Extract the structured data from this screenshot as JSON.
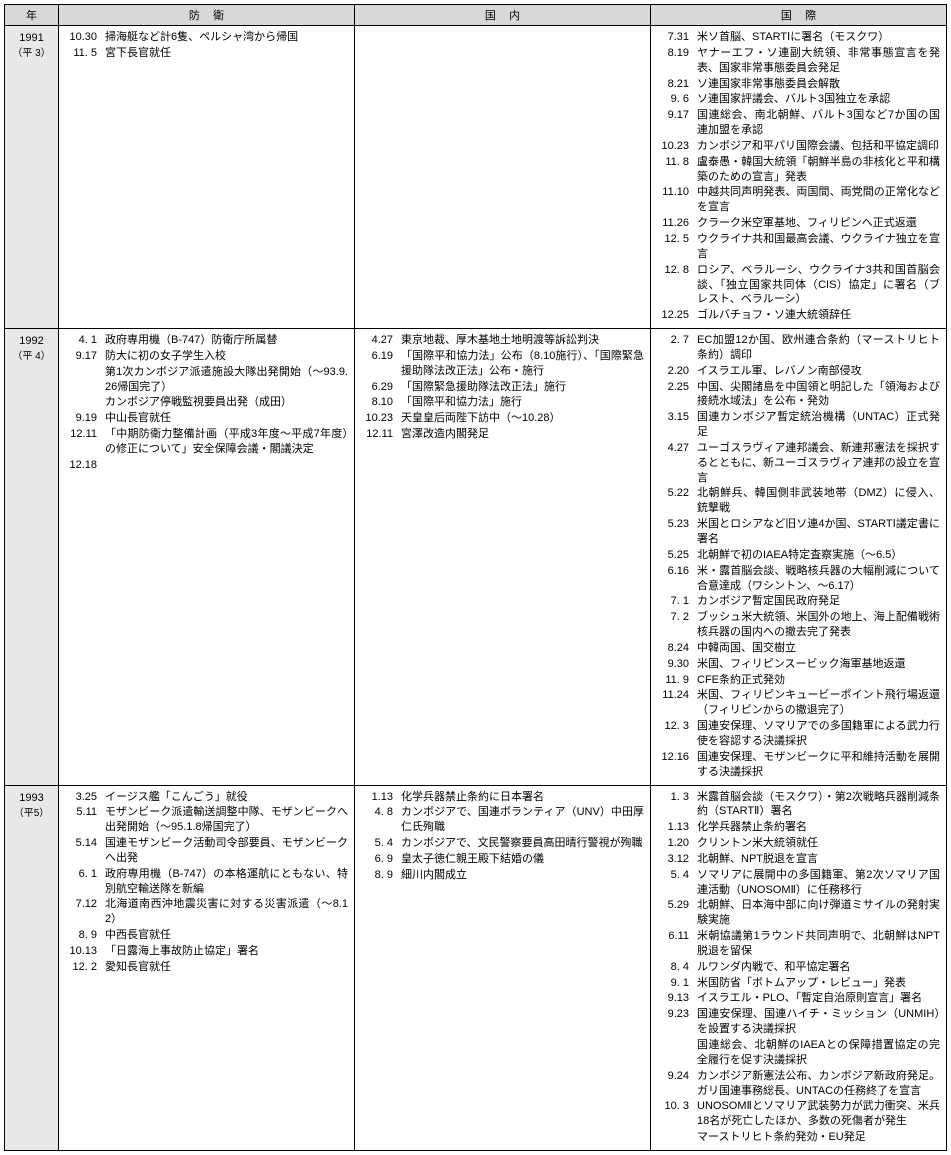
{
  "headers": {
    "year": "年",
    "defense": "防衛",
    "domestic": "国内",
    "international": "国際"
  },
  "col_widths": {
    "year": 54,
    "defense": 280,
    "domestic": 220,
    "international": 340
  },
  "colors": {
    "header_bg": "#d8d8d8",
    "year_bg": "#e8e8e8",
    "border": "#000000",
    "text": "#000000",
    "page_bg": "#ffffff"
  },
  "font_size_pt": 8,
  "rows": [
    {
      "year_main": "1991",
      "year_sub": "（平 3）",
      "defense": [
        {
          "date": "10.30",
          "text": "掃海艇など計6隻、ペルシャ湾から帰国"
        },
        {
          "date": "11. 5",
          "text": "宮下長官就任"
        }
      ],
      "domestic": [],
      "international": [
        {
          "date": "7.31",
          "text": "米ソ首脳、STARTⅠに署名（モスクワ）"
        },
        {
          "date": "8.19",
          "text": "ヤナーエフ・ソ連副大統領、非常事態宣言を発表、国家非常事態委員会発足"
        },
        {
          "date": "8.21",
          "text": "ソ連国家非常事態委員会解散"
        },
        {
          "date": "9. 6",
          "text": "ソ連国家評議会、バルト3国独立を承認"
        },
        {
          "date": "9.17",
          "text": "国連総会、南北朝鮮、バルト3国など7か国の国連加盟を承認"
        },
        {
          "date": "10.23",
          "text": "カンボジア和平パリ国際会議、包括和平協定調印"
        },
        {
          "date": "11. 8",
          "text": "盧泰愚・韓国大統領「朝鮮半島の非核化と平和構築のための宣言」発表"
        },
        {
          "date": "11.10",
          "text": "中越共同声明発表、両国間、両党間の正常化などを宣言"
        },
        {
          "date": "11.26",
          "text": "クラーク米空軍基地、フィリピンへ正式返還"
        },
        {
          "date": "12. 5",
          "text": "ウクライナ共和国最高会議、ウクライナ独立を宣言"
        },
        {
          "date": "12. 8",
          "text": "ロシア、ベラルーシ、ウクライナ3共和国首脳会談、「独立国家共同体（CIS）協定」に署名（ブレスト、ベラルーシ）"
        },
        {
          "date": "12.25",
          "text": "ゴルバチョフ・ソ連大統領辞任"
        }
      ]
    },
    {
      "year_main": "1992",
      "year_sub": "（平 4）",
      "defense": [
        {
          "date": "4. 1",
          "text": "政府専用機（B-747）防衛庁所属替"
        },
        {
          "date": "9.17",
          "text": "防大に初の女子学生入校"
        },
        {
          "date": "",
          "text": "第1次カンボジア派遣施設大隊出発開始（～93.9.26帰国完了）"
        },
        {
          "date": "",
          "text": "カンボジア停戦監視要員出発（成田）"
        },
        {
          "date": "9.19",
          "text": "中山長官就任"
        },
        {
          "date": "12.11",
          "text": "「中期防衛力整備計画（平成3年度～平成7年度）の修正について」安全保障会議・閣議決定"
        },
        {
          "date": "12.18",
          "text": ""
        }
      ],
      "domestic": [
        {
          "date": "4.27",
          "text": "東京地裁、厚木基地土地明渡等訴訟判決"
        },
        {
          "date": "6.19",
          "text": "「国際平和協力法」公布（8.10施行）、「国際緊急援助隊法改正法」公布・施行"
        },
        {
          "date": "6.29",
          "text": "「国際緊急援助隊法改正法」施行"
        },
        {
          "date": "8.10",
          "text": "「国際平和協力法」施行"
        },
        {
          "date": "10.23",
          "text": "天皇皇后両陛下訪中（～10.28）"
        },
        {
          "date": "12.11",
          "text": "宮澤改造内閣発足"
        }
      ],
      "international": [
        {
          "date": "2. 7",
          "text": "EC加盟12か国、欧州連合条約（マーストリヒト条約）調印"
        },
        {
          "date": "2.20",
          "text": "イスラエル軍、レバノン南部侵攻"
        },
        {
          "date": "2.25",
          "text": "中国、尖閣諸島を中国領と明記した「領海および接続水域法」を公布・発効"
        },
        {
          "date": "3.15",
          "text": "国連カンボジア暫定統治機構（UNTAC）正式発足"
        },
        {
          "date": "4.27",
          "text": "ユーゴスラヴィア連邦議会、新連邦憲法を採択するとともに、新ユーゴスラヴィア連邦の設立を宣言"
        },
        {
          "date": "5.22",
          "text": "北朝鮮兵、韓国側非武装地帯（DMZ）に侵入、銃撃戦"
        },
        {
          "date": "5.23",
          "text": "米国とロシアなど旧ソ連4か国、STARTⅠ議定書に署名"
        },
        {
          "date": "5.25",
          "text": "北朝鮮で初のIAEA特定査察実施（～6.5）"
        },
        {
          "date": "6.16",
          "text": "米・露首脳会談、戦略核兵器の大幅削減について合意達成（ワシントン、～6.17）"
        },
        {
          "date": "7. 1",
          "text": "カンボジア暫定国民政府発足"
        },
        {
          "date": "7. 2",
          "text": "ブッシュ米大統領、米国外の地上、海上配備戦術核兵器の国内への撤去完了発表"
        },
        {
          "date": "8.24",
          "text": "中韓両国、国交樹立"
        },
        {
          "date": "9.30",
          "text": "米国、フィリピンスービック海軍基地返還"
        },
        {
          "date": "11. 9",
          "text": "CFE条約正式発効"
        },
        {
          "date": "11.24",
          "text": "米国、フィリピンキュービーポイント飛行場返還（フィリピンからの撤退完了）"
        },
        {
          "date": "12. 3",
          "text": "国連安保理、ソマリアでの多国籍軍による武力行使を容認する決議採択"
        },
        {
          "date": "12.16",
          "text": "国連安保理、モザンビークに平和維持活動を展開する決議採択"
        }
      ]
    },
    {
      "year_main": "1993",
      "year_sub": "（平5）",
      "defense": [
        {
          "date": "3.25",
          "text": "イージス艦「こんごう」就役"
        },
        {
          "date": "5.11",
          "text": "モザンビーク派遣輸送調整中隊、モザンビークへ出発開始（～95.1.8帰国完了）"
        },
        {
          "date": "5.14",
          "text": "国連モザンビーク活動司令部要員、モザンビークへ出発"
        },
        {
          "date": "6. 1",
          "text": "政府専用機（B-747）の本格運航にともない、特別航空輸送隊を新編"
        },
        {
          "date": "7.12",
          "text": "北海道南西沖地震災害に対する災害派遣（～8.12）"
        },
        {
          "date": "8. 9",
          "text": "中西長官就任"
        },
        {
          "date": "10.13",
          "text": "「日露海上事故防止協定」署名"
        },
        {
          "date": "12. 2",
          "text": "愛知長官就任"
        }
      ],
      "domestic": [
        {
          "date": "1.13",
          "text": "化学兵器禁止条約に日本署名"
        },
        {
          "date": "4. 8",
          "text": "カンボジアで、国連ボランティア（UNV）中田厚仁氏殉職"
        },
        {
          "date": "5. 4",
          "text": "カンボジアで、文民警察要員高田晴行警視が殉職"
        },
        {
          "date": "6. 9",
          "text": "皇太子徳仁親王殿下結婚の儀"
        },
        {
          "date": "8. 9",
          "text": "細川内閣成立"
        }
      ],
      "international": [
        {
          "date": "1. 3",
          "text": "米露首脳会談（モスクワ）・第2次戦略兵器削減条約（STARTⅡ）署名"
        },
        {
          "date": "1.13",
          "text": "化学兵器禁止条約署名"
        },
        {
          "date": "1.20",
          "text": "クリントン米大統領就任"
        },
        {
          "date": "3.12",
          "text": "北朝鮮、NPT脱退を宣言"
        },
        {
          "date": "5. 4",
          "text": "ソマリアに展開中の多国籍軍、第2次ソマリア国連活動（UNOSOMⅡ）に任務移行"
        },
        {
          "date": "5.29",
          "text": "北朝鮮、日本海中部に向け弾道ミサイルの発射実験実施"
        },
        {
          "date": "6.11",
          "text": "米朝協議第1ラウンド共同声明で、北朝鮮はNPT脱退を留保"
        },
        {
          "date": "8. 4",
          "text": "ルワンダ内戦で、和平協定署名"
        },
        {
          "date": "9. 1",
          "text": "米国防省「ボトムアップ・レビュー」発表"
        },
        {
          "date": "9.13",
          "text": "イスラエル・PLO、「暫定自治原則宣言」署名"
        },
        {
          "date": "9.23",
          "text": "国連安保理、国連ハイチ・ミッション（UNMIH）を設置する決議採択"
        },
        {
          "date": "",
          "text": "国連総会、北朝鮮のIAEAとの保障措置協定の完全履行を促す決議採択"
        },
        {
          "date": "9.24",
          "text": "カンボジア新憲法公布、カンボジア新政府発足。ガリ国連事務総長、UNTACの任務終了を宣言"
        },
        {
          "date": "10. 3",
          "text": "UNOSOMⅡとソマリア武装勢力が武力衝突、米兵18名が死亡したほか、多数の死傷者が発生"
        },
        {
          "date": "",
          "text": "マーストリヒト条約発効・EU発足"
        }
      ]
    }
  ]
}
